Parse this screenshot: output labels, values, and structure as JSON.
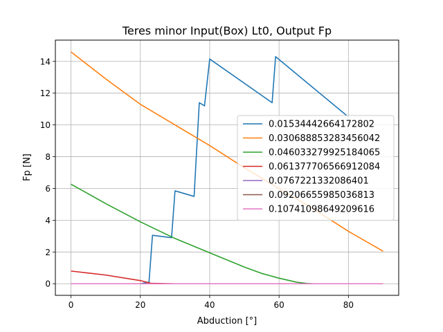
{
  "chart_data": {
    "type": "line",
    "title": "Teres minor Input(Box) Lt0, Output Fp",
    "xlabel": "Abduction [°]",
    "ylabel": "Fp [N]",
    "xlim": [
      -4.5,
      94.5
    ],
    "ylim": [
      -0.73,
      15.34
    ],
    "xticks": [
      0,
      20,
      40,
      60,
      80
    ],
    "yticks": [
      0,
      2,
      4,
      6,
      8,
      10,
      12,
      14
    ],
    "grid": true,
    "legend_position": "center-right",
    "series": [
      {
        "name": "0.01534442664172802",
        "color": "#1f77b4",
        "x": [
          0,
          10,
          20,
          22.5,
          23.5,
          29,
          30,
          35.5,
          37,
          38.5,
          40,
          58,
          59,
          80
        ],
        "y": [
          0,
          0,
          0,
          0.1,
          3.05,
          2.9,
          5.85,
          5.5,
          11.4,
          11.2,
          14.15,
          11.4,
          14.3,
          10.5
        ]
      },
      {
        "name": "0.030688853283456042",
        "color": "#ff7f0e",
        "x": [
          0,
          10,
          20,
          30,
          40,
          50,
          60,
          70,
          80,
          90
        ],
        "y": [
          14.6,
          12.9,
          11.3,
          10.0,
          8.7,
          7.3,
          6.0,
          4.7,
          3.3,
          2.05
        ]
      },
      {
        "name": "0.046033279925184065",
        "color": "#2ca02c",
        "x": [
          0,
          10,
          20,
          30,
          40,
          50,
          55,
          60,
          65,
          68,
          70,
          80,
          90
        ],
        "y": [
          6.27,
          5.05,
          3.9,
          2.85,
          1.95,
          1.05,
          0.65,
          0.35,
          0.1,
          0.02,
          0,
          0,
          0
        ]
      },
      {
        "name": "0.061377706566912084",
        "color": "#d62728",
        "x": [
          0,
          10,
          20,
          23,
          30,
          50,
          70,
          90
        ],
        "y": [
          0.8,
          0.55,
          0.2,
          0.03,
          0,
          0,
          0,
          0
        ]
      },
      {
        "name": "0.0767221332086401",
        "color": "#9467bd",
        "x": [
          0,
          90
        ],
        "y": [
          0,
          0
        ]
      },
      {
        "name": "0.09206655985036813",
        "color": "#8c564b",
        "x": [
          0,
          90
        ],
        "y": [
          0,
          0
        ]
      },
      {
        "name": "0.10741098649209616",
        "color": "#e377c2",
        "x": [
          0,
          90
        ],
        "y": [
          0,
          0
        ]
      }
    ]
  }
}
